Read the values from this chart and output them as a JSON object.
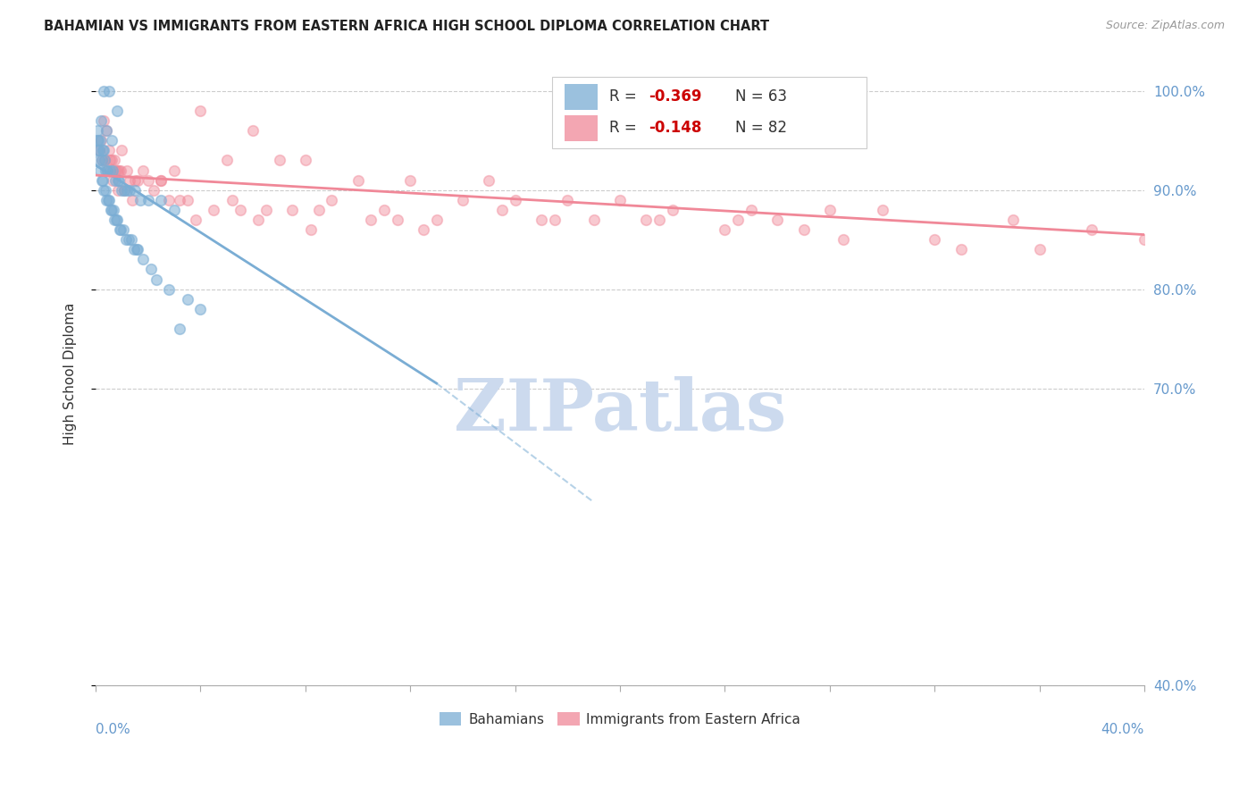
{
  "title": "BAHAMIAN VS IMMIGRANTS FROM EASTERN AFRICA HIGH SCHOOL DIPLOMA CORRELATION CHART",
  "source": "Source: ZipAtlas.com",
  "ylabel": "High School Diploma",
  "yaxis_ticks": [
    40.0,
    70.0,
    80.0,
    90.0,
    100.0
  ],
  "xlim": [
    0.0,
    40.0
  ],
  "ylim": [
    40.0,
    103.0
  ],
  "watermark": "ZIPatlas",
  "watermark_color": "#ccdaee",
  "blue_scatter": {
    "x": [
      0.3,
      0.5,
      0.8,
      0.2,
      0.4,
      0.1,
      0.6,
      0.3,
      0.15,
      0.25,
      0.35,
      0.45,
      0.55,
      0.65,
      0.75,
      0.85,
      0.9,
      1.0,
      1.1,
      1.2,
      1.3,
      1.5,
      1.7,
      2.0,
      2.5,
      3.0,
      0.05,
      0.08,
      0.12,
      0.18,
      0.22,
      0.28,
      0.32,
      0.38,
      0.42,
      0.48,
      0.52,
      0.58,
      0.62,
      0.68,
      0.72,
      0.78,
      0.82,
      0.92,
      0.95,
      1.05,
      1.15,
      1.25,
      1.35,
      1.45,
      1.6,
      1.8,
      2.1,
      2.3,
      2.8,
      3.5,
      4.0,
      0.07,
      0.17,
      0.27,
      3.2,
      0.37,
      1.55
    ],
    "y": [
      100,
      100,
      98,
      97,
      96,
      95,
      95,
      94,
      94,
      93,
      93,
      92,
      92,
      92,
      91,
      91,
      91,
      90,
      90,
      90,
      90,
      90,
      89,
      89,
      89,
      88,
      95,
      94,
      93,
      92,
      91,
      91,
      90,
      90,
      89,
      89,
      89,
      88,
      88,
      88,
      87,
      87,
      87,
      86,
      86,
      86,
      85,
      85,
      85,
      84,
      84,
      83,
      82,
      81,
      80,
      79,
      78,
      96,
      95,
      94,
      76,
      92,
      84
    ]
  },
  "pink_scatter": {
    "x": [
      0.2,
      0.3,
      0.4,
      0.5,
      0.6,
      0.7,
      0.8,
      0.9,
      1.0,
      1.2,
      1.5,
      1.8,
      2.0,
      2.5,
      3.0,
      4.0,
      5.0,
      6.0,
      7.0,
      8.0,
      10.0,
      12.0,
      14.0,
      15.0,
      16.0,
      18.0,
      20.0,
      22.0,
      25.0,
      28.0,
      30.0,
      35.0,
      38.0,
      0.15,
      0.35,
      0.55,
      0.75,
      0.95,
      1.3,
      1.6,
      2.2,
      2.8,
      3.5,
      4.5,
      6.5,
      9.0,
      11.0,
      13.0,
      17.0,
      19.0,
      21.0,
      24.0,
      27.0,
      32.0,
      36.0,
      0.25,
      0.45,
      0.65,
      0.85,
      1.1,
      1.4,
      2.5,
      3.2,
      5.5,
      7.5,
      26.0,
      33.0,
      8.5,
      11.5,
      21.5,
      24.5,
      10.5,
      15.5,
      5.2,
      3.8,
      6.2,
      8.2,
      12.5,
      17.5,
      28.5,
      40.0
    ],
    "y": [
      95,
      97,
      96,
      94,
      93,
      93,
      92,
      92,
      94,
      92,
      91,
      92,
      91,
      91,
      92,
      98,
      93,
      96,
      93,
      93,
      91,
      91,
      89,
      91,
      89,
      89,
      89,
      88,
      88,
      88,
      88,
      87,
      86,
      94,
      93,
      93,
      92,
      92,
      91,
      91,
      90,
      89,
      89,
      88,
      88,
      89,
      88,
      87,
      87,
      87,
      87,
      86,
      86,
      85,
      84,
      93,
      92,
      91,
      90,
      90,
      89,
      91,
      89,
      88,
      88,
      87,
      84,
      88,
      87,
      87,
      87,
      87,
      88,
      89,
      87,
      87,
      86,
      86,
      87,
      85,
      85
    ]
  },
  "blue_line": {
    "x0": 0.0,
    "y0": 92.5,
    "x1": 13.0,
    "y1": 70.5
  },
  "pink_line": {
    "x0": 0.0,
    "y0": 91.5,
    "x1": 40.0,
    "y1": 85.5
  },
  "dashed_line": {
    "x0": 13.0,
    "y0": 70.5,
    "x1": 19.0,
    "y1": 58.5
  },
  "scatter_size": 70,
  "blue_color": "#7aadd4",
  "pink_color": "#f08898",
  "blue_alpha": 0.55,
  "pink_alpha": 0.45,
  "grid_color": "#cccccc",
  "right_tick_color": "#6699cc",
  "num_xticks": 11
}
